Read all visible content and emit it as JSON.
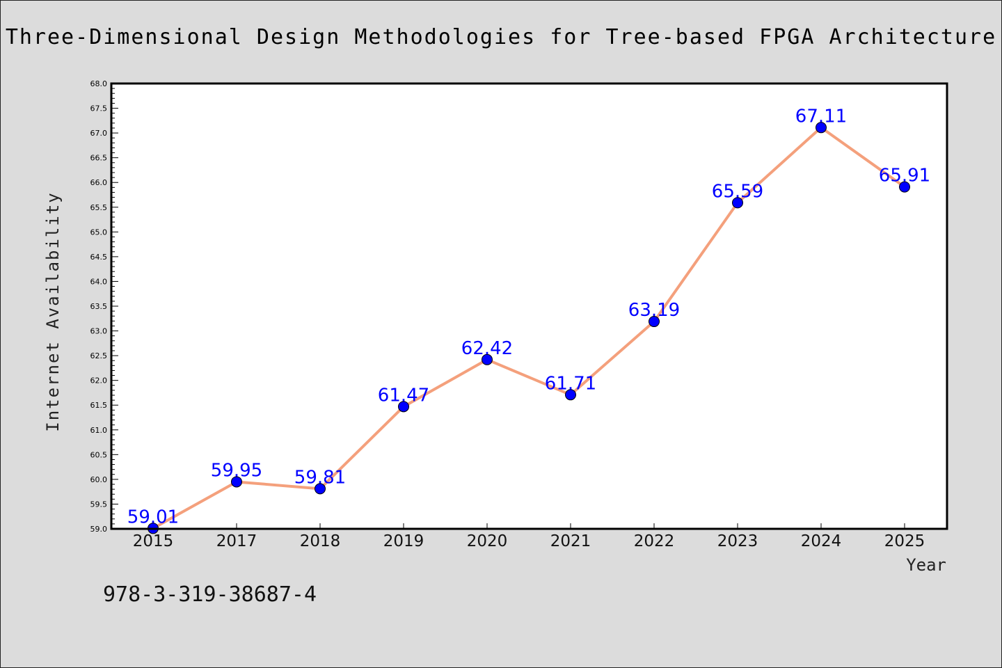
{
  "chart_data": {
    "type": "line",
    "title": "Three-Dimensional Design Methodologies for Tree-based FPGA Architecture",
    "xlabel": "Year",
    "ylabel": "Internet Availability",
    "categories": [
      "2015",
      "2017",
      "2018",
      "2019",
      "2020",
      "2021",
      "2022",
      "2023",
      "2024",
      "2025"
    ],
    "series": [
      {
        "values": [
          59.01,
          59.95,
          59.81,
          61.47,
          62.42,
          61.71,
          63.19,
          65.59,
          67.11,
          65.91
        ],
        "data_labels": [
          "59.01",
          "59.95",
          "59.81",
          "61.47",
          "62.42",
          "61.71",
          "63.19",
          "65.59",
          "67.11",
          "65.91"
        ],
        "line_color": "#f4a07c",
        "marker_color": "#0000ff"
      }
    ],
    "ylim": [
      59.0,
      68.0
    ],
    "ytick_labels": [
      "59.0",
      "59.5",
      "60.0",
      "60.5",
      "61.0",
      "61.5",
      "62.0",
      "62.5",
      "63.0",
      "63.5",
      "64.0",
      "64.5",
      "65.0",
      "65.5",
      "66.0",
      "66.5",
      "67.0",
      "67.5",
      "68.0"
    ],
    "grid": false,
    "legend": "none",
    "annotation": "978-3-319-38687-4",
    "label_color": "#0000ff"
  }
}
